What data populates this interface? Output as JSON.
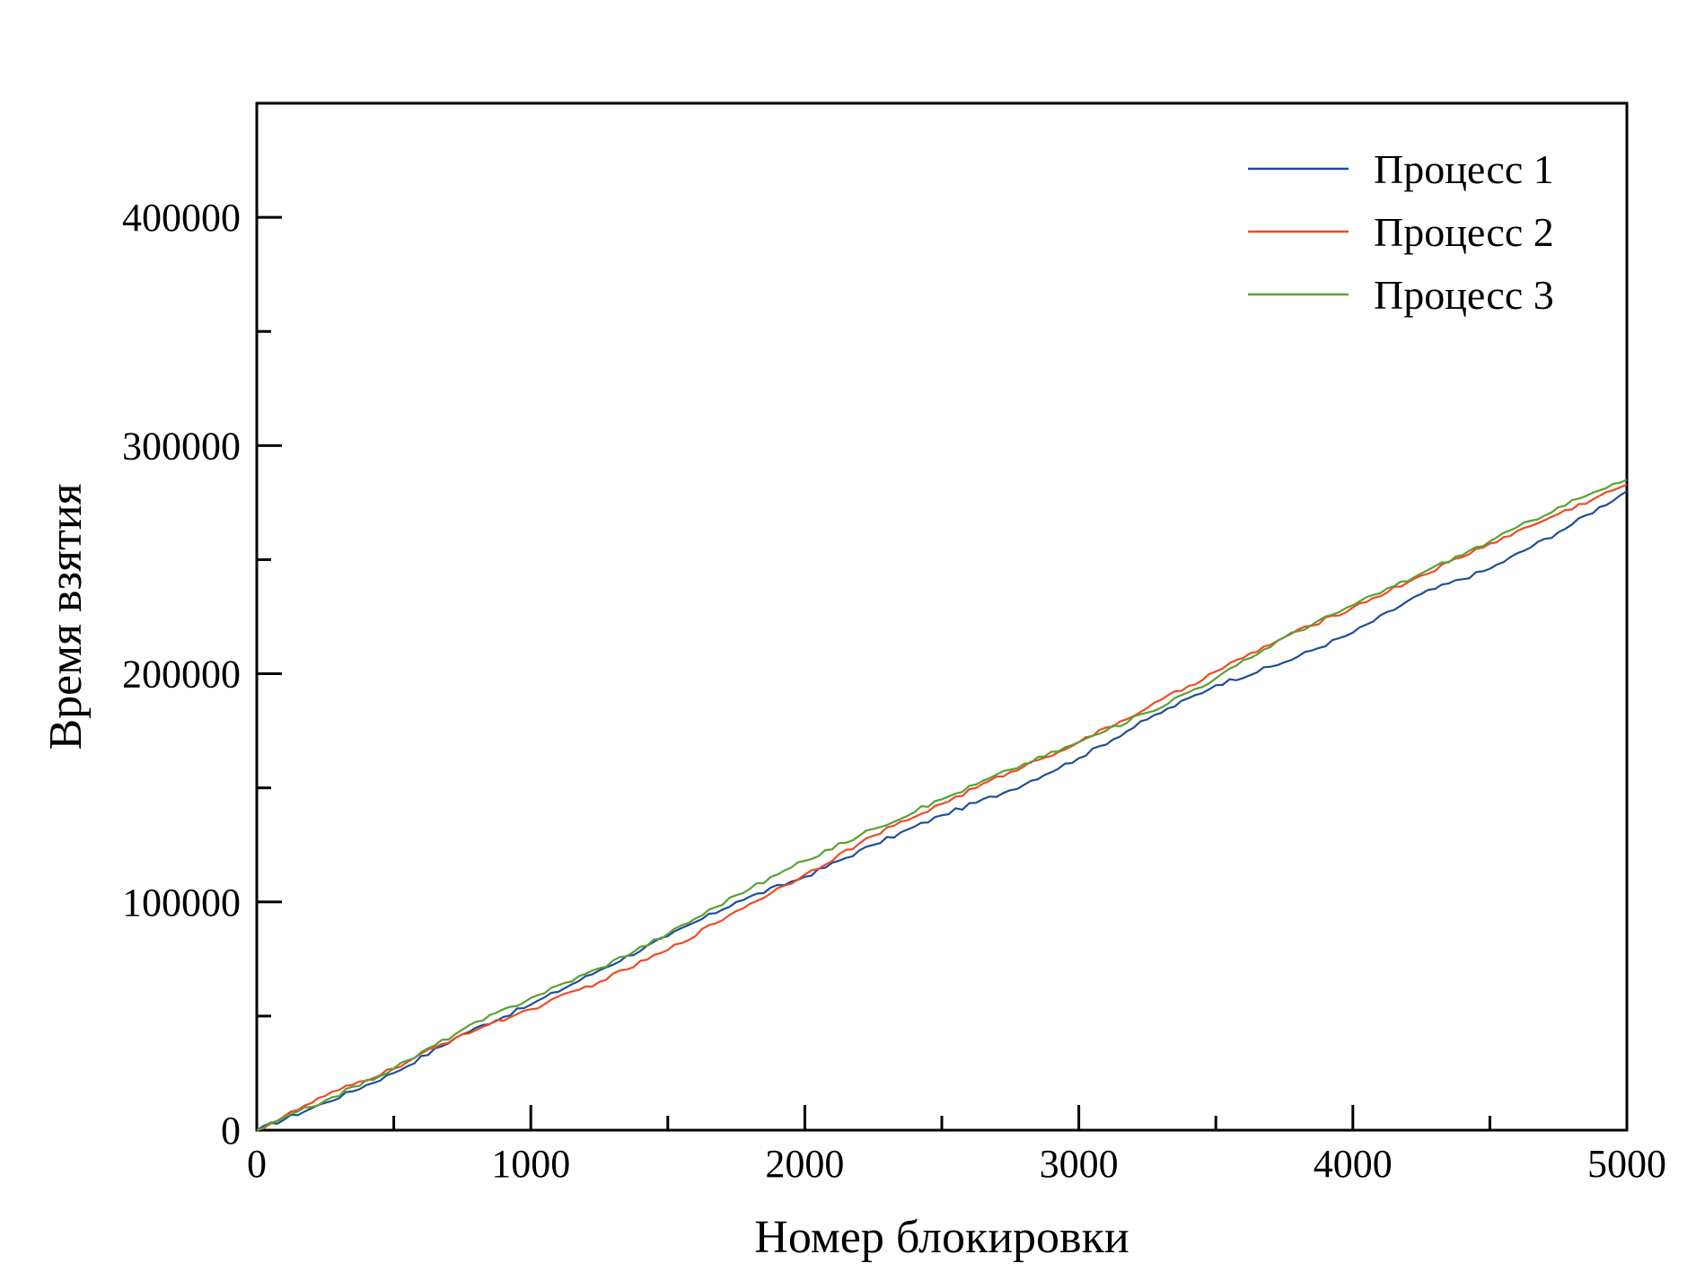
{
  "chart_data": {
    "type": "line",
    "title": "",
    "xlabel": "Номер блокировки",
    "ylabel": "Время взятия",
    "xlim": [
      0,
      5000
    ],
    "ylim": [
      0,
      450000
    ],
    "grid": false,
    "legend_position": "top-right",
    "x_ticks": [
      "0",
      "1000",
      "2000",
      "3000",
      "4000",
      "5000"
    ],
    "y_ticks": [
      "0",
      "100000",
      "200000",
      "300000",
      "400000"
    ],
    "x": [
      0,
      250,
      500,
      750,
      1000,
      1250,
      1500,
      1750,
      2000,
      2250,
      2500,
      2750,
      3000,
      3250,
      3500,
      3750,
      4000,
      4250,
      4500,
      4750,
      5000
    ],
    "series": [
      {
        "name": "Процесс 1",
        "color": "#1f4e9c",
        "values": [
          0,
          12000,
          25000,
          42000,
          55000,
          70000,
          85000,
          100000,
          111000,
          125000,
          138000,
          149000,
          163000,
          180000,
          195000,
          205000,
          218000,
          235000,
          246000,
          262000,
          280000
        ]
      },
      {
        "name": "Процесс 2",
        "color": "#f04a24",
        "values": [
          0,
          15000,
          27000,
          42000,
          53000,
          65000,
          79000,
          96000,
          112000,
          129000,
          143000,
          157000,
          170000,
          185000,
          201000,
          216000,
          229000,
          243000,
          257000,
          270000,
          283000
        ]
      },
      {
        "name": "Процесс 3",
        "color": "#5ba033",
        "values": [
          0,
          13000,
          27000,
          44000,
          58000,
          71000,
          86000,
          103000,
          118000,
          132000,
          145000,
          158000,
          170000,
          183000,
          198000,
          216000,
          230000,
          244000,
          258000,
          273000,
          285000
        ]
      }
    ]
  }
}
